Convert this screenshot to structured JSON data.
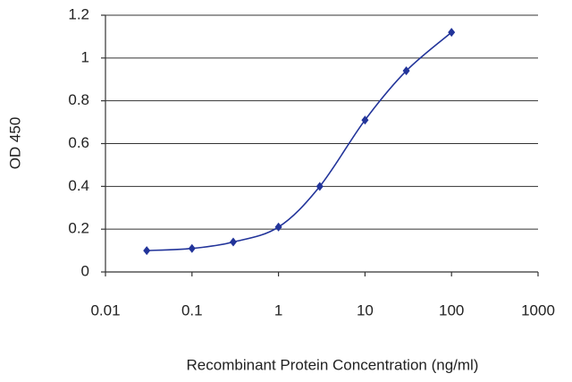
{
  "chart_data": {
    "type": "line",
    "xlabel": "Recombinant Protein Concentration (ng/ml)",
    "ylabel": "OD 450",
    "x": [
      0.03,
      0.1,
      0.3,
      1,
      3,
      10,
      30,
      100
    ],
    "values": [
      0.1,
      0.11,
      0.14,
      0.21,
      0.4,
      0.71,
      0.94,
      1.12
    ],
    "color": "#22349a",
    "xscale": "log",
    "xlim": [
      0.01,
      1000
    ],
    "xticks": [
      0.01,
      0.1,
      1,
      10,
      100,
      1000
    ],
    "ylim": [
      0,
      1.2
    ],
    "yticks": [
      0,
      0.2,
      0.4,
      0.6,
      0.8,
      1,
      1.2
    ],
    "grid": true
  }
}
